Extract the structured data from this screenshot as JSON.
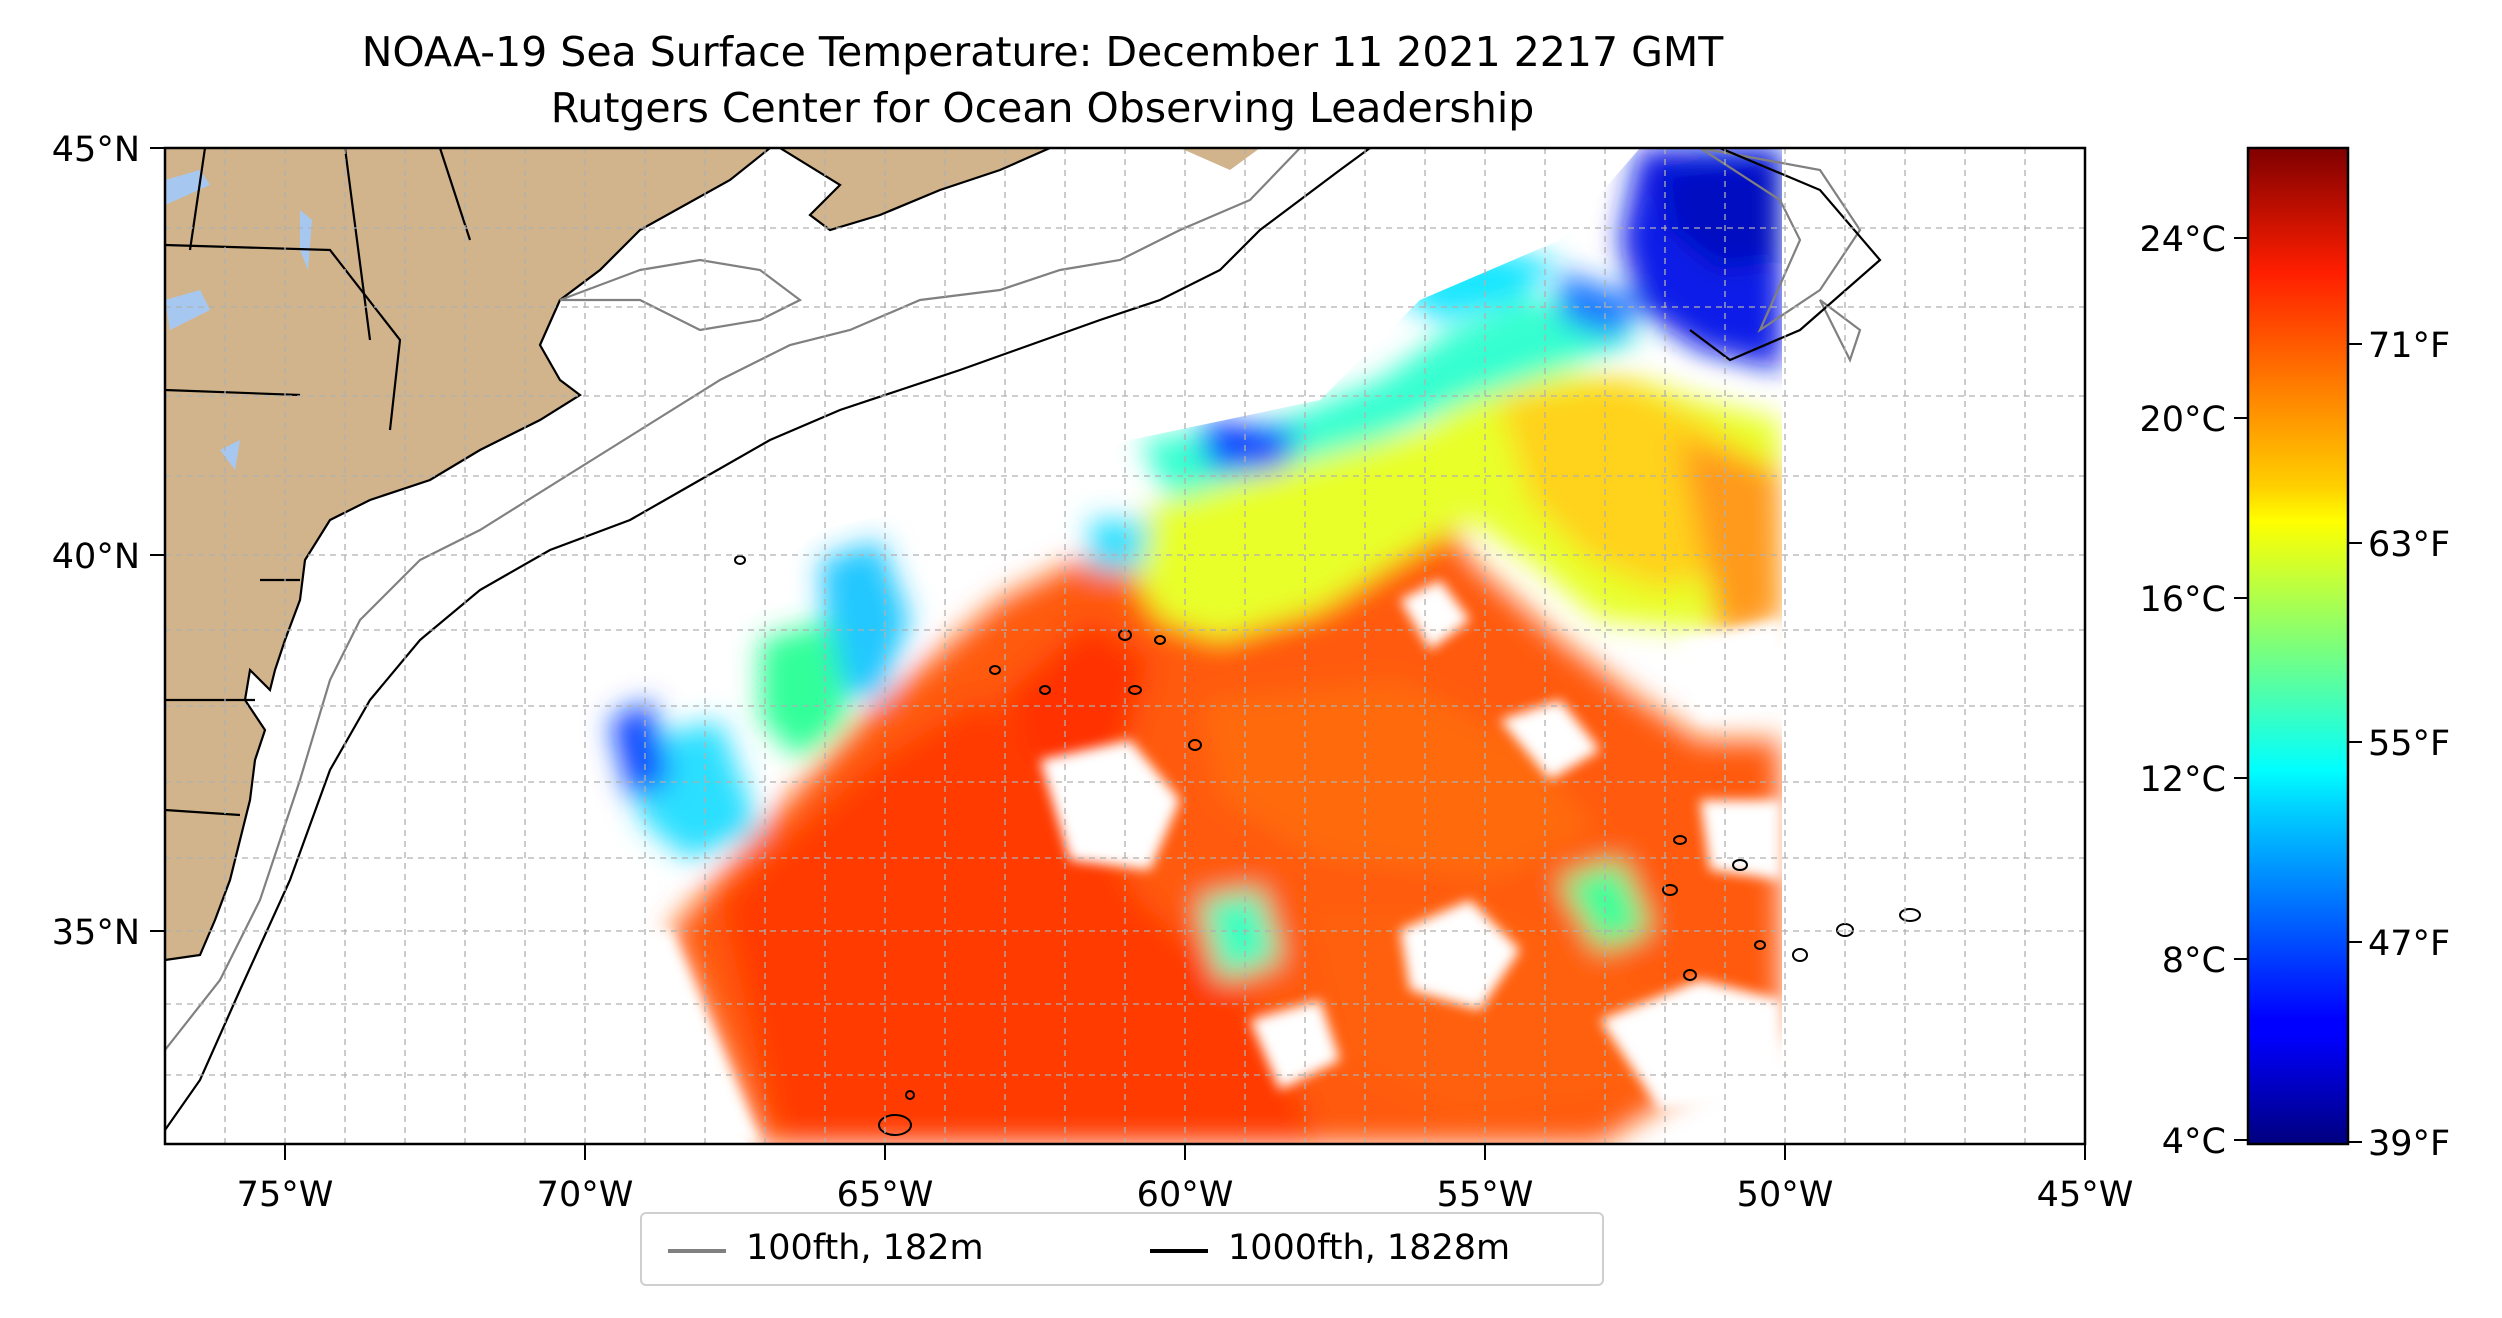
{
  "title": {
    "line1": "NOAA-19 Sea Surface Temperature: December 11 2021 2217 GMT",
    "line2": "Rutgers Center for Ocean Observing Leadership"
  },
  "map": {
    "lon_ticks": [
      "75°W",
      "70°W",
      "65°W",
      "60°W",
      "55°W",
      "50°W",
      "45°W"
    ],
    "lat_ticks": [
      "45°N",
      "40°N",
      "35°N"
    ],
    "lon_range": [
      -77,
      -45
    ],
    "lat_range": [
      32.5,
      45
    ],
    "land_color": "#d2b48c",
    "lake_color": "#a6c8f0",
    "gridlines": true
  },
  "colorbar": {
    "celsius_labels": [
      "24°C",
      "20°C",
      "16°C",
      "12°C",
      "8°C",
      "4°C"
    ],
    "fahrenheit_labels": [
      "71°F",
      "63°F",
      "55°F",
      "47°F",
      "39°F"
    ],
    "colormap": "jet",
    "range_c": [
      3.9,
      25.9
    ]
  },
  "legend": {
    "items": [
      {
        "label": "100fth, 182m",
        "color": "#808080"
      },
      {
        "label": "1000fth, 1828m",
        "color": "#000000"
      }
    ]
  }
}
